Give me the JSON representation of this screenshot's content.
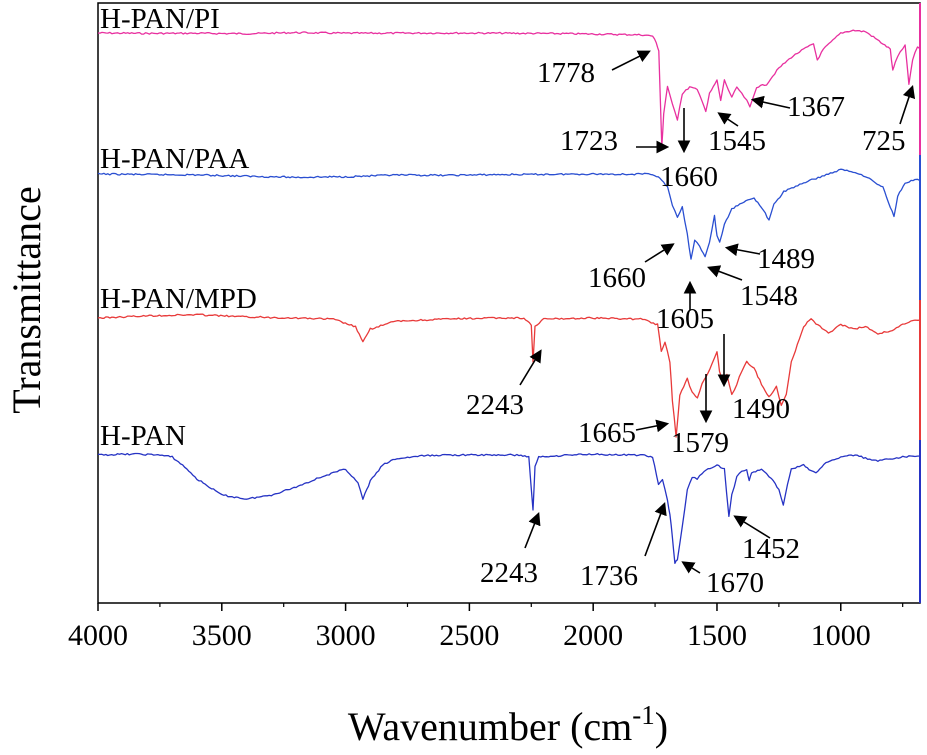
{
  "chart_data": {
    "type": "line",
    "title": "",
    "xlabel": "Wavenumber (cm",
    "xlabel_sup": "-1",
    "xlabel_close": ")",
    "ylabel": "Transmittance",
    "xlim": [
      4000,
      680
    ],
    "x_reversed": true,
    "y_ticks_shown": false,
    "grid": false,
    "x_ticks": [
      "4000",
      "3500",
      "3000",
      "2500",
      "2000",
      "1500",
      "1000"
    ],
    "x_tick_values": [
      4000,
      3500,
      3000,
      2500,
      2000,
      1500,
      1000
    ],
    "series": [
      {
        "name": "H-PAN/PI",
        "color": "#e8309f",
        "baseline_text": "",
        "points": [
          [
            4000,
            0
          ],
          [
            3800,
            0.3
          ],
          [
            3600,
            0.2
          ],
          [
            3400,
            0.5
          ],
          [
            3200,
            -0.3
          ],
          [
            3000,
            0.2
          ],
          [
            2800,
            0.1
          ],
          [
            2600,
            0
          ],
          [
            2400,
            0.1
          ],
          [
            2250,
            0.3
          ],
          [
            2100,
            0.5
          ],
          [
            1950,
            0.9
          ],
          [
            1800,
            1.4
          ],
          [
            1760,
            2.2
          ],
          [
            1745,
            7.5
          ],
          [
            1735,
            13
          ],
          [
            1723,
            84
          ],
          [
            1715,
            60
          ],
          [
            1700,
            40
          ],
          [
            1680,
            52
          ],
          [
            1660,
            64
          ],
          [
            1640,
            45
          ],
          [
            1610,
            40
          ],
          [
            1580,
            42
          ],
          [
            1560,
            50
          ],
          [
            1545,
            58
          ],
          [
            1530,
            45
          ],
          [
            1500,
            35
          ],
          [
            1485,
            50
          ],
          [
            1470,
            35
          ],
          [
            1440,
            48
          ],
          [
            1420,
            40
          ],
          [
            1400,
            45
          ],
          [
            1380,
            50
          ],
          [
            1367,
            55
          ],
          [
            1340,
            40
          ],
          [
            1300,
            38
          ],
          [
            1250,
            26
          ],
          [
            1200,
            18
          ],
          [
            1150,
            12
          ],
          [
            1110,
            8
          ],
          [
            1095,
            20
          ],
          [
            1070,
            12
          ],
          [
            1000,
            0
          ],
          [
            950,
            -2
          ],
          [
            900,
            -1
          ],
          [
            860,
            4
          ],
          [
            830,
            8
          ],
          [
            800,
            12
          ],
          [
            790,
            28
          ],
          [
            780,
            22
          ],
          [
            760,
            14
          ],
          [
            740,
            9
          ],
          [
            725,
            38
          ],
          [
            710,
            20
          ],
          [
            690,
            10
          ],
          [
            680,
            12
          ]
        ]
      },
      {
        "name": "H-PAN/PAA",
        "color": "#2a4fd1",
        "points": [
          [
            4000,
            0
          ],
          [
            3800,
            0.5
          ],
          [
            3600,
            0.8
          ],
          [
            3400,
            2
          ],
          [
            3200,
            3
          ],
          [
            3000,
            2.5
          ],
          [
            2800,
            1
          ],
          [
            2600,
            1.2
          ],
          [
            2400,
            0.6
          ],
          [
            2200,
            0.3
          ],
          [
            2000,
            0
          ],
          [
            1850,
            0.2
          ],
          [
            1760,
            0
          ],
          [
            1730,
            4
          ],
          [
            1700,
            12
          ],
          [
            1680,
            28
          ],
          [
            1660,
            40
          ],
          [
            1640,
            30
          ],
          [
            1620,
            55
          ],
          [
            1605,
            78
          ],
          [
            1590,
            60
          ],
          [
            1570,
            66
          ],
          [
            1548,
            75
          ],
          [
            1530,
            62
          ],
          [
            1510,
            38
          ],
          [
            1500,
            56
          ],
          [
            1489,
            62
          ],
          [
            1470,
            46
          ],
          [
            1440,
            32
          ],
          [
            1400,
            26
          ],
          [
            1350,
            22
          ],
          [
            1320,
            30
          ],
          [
            1290,
            42
          ],
          [
            1270,
            28
          ],
          [
            1230,
            16
          ],
          [
            1150,
            8
          ],
          [
            1100,
            4
          ],
          [
            1050,
            0
          ],
          [
            1000,
            -4
          ],
          [
            950,
            -2
          ],
          [
            900,
            2
          ],
          [
            860,
            8
          ],
          [
            830,
            12
          ],
          [
            800,
            30
          ],
          [
            785,
            38
          ],
          [
            770,
            20
          ],
          [
            740,
            8
          ],
          [
            700,
            5
          ],
          [
            680,
            6
          ]
        ]
      },
      {
        "name": "H-PAN/MPD",
        "color": "#e83a3a",
        "points": [
          [
            4000,
            0
          ],
          [
            3800,
            -2
          ],
          [
            3600,
            -3
          ],
          [
            3400,
            -1
          ],
          [
            3200,
            0
          ],
          [
            3050,
            1
          ],
          [
            2960,
            8
          ],
          [
            2930,
            22
          ],
          [
            2900,
            10
          ],
          [
            2800,
            3
          ],
          [
            2600,
            1
          ],
          [
            2400,
            0
          ],
          [
            2280,
            0
          ],
          [
            2250,
            6
          ],
          [
            2243,
            40
          ],
          [
            2235,
            8
          ],
          [
            2200,
            1
          ],
          [
            2000,
            0
          ],
          [
            1800,
            1
          ],
          [
            1740,
            6
          ],
          [
            1725,
            30
          ],
          [
            1710,
            22
          ],
          [
            1690,
            40
          ],
          [
            1680,
            75
          ],
          [
            1665,
            108
          ],
          [
            1650,
            70
          ],
          [
            1620,
            55
          ],
          [
            1600,
            68
          ],
          [
            1579,
            72
          ],
          [
            1560,
            60
          ],
          [
            1520,
            42
          ],
          [
            1500,
            30
          ],
          [
            1490,
            48
          ],
          [
            1475,
            58
          ],
          [
            1460,
            52
          ],
          [
            1440,
            70
          ],
          [
            1420,
            60
          ],
          [
            1400,
            48
          ],
          [
            1380,
            40
          ],
          [
            1350,
            46
          ],
          [
            1320,
            60
          ],
          [
            1290,
            72
          ],
          [
            1260,
            62
          ],
          [
            1240,
            80
          ],
          [
            1220,
            70
          ],
          [
            1200,
            40
          ],
          [
            1150,
            8
          ],
          [
            1120,
            0
          ],
          [
            1100,
            5
          ],
          [
            1050,
            14
          ],
          [
            1000,
            6
          ],
          [
            950,
            10
          ],
          [
            900,
            8
          ],
          [
            850,
            14
          ],
          [
            800,
            12
          ],
          [
            750,
            6
          ],
          [
            700,
            2
          ],
          [
            680,
            2
          ]
        ]
      },
      {
        "name": "H-PAN",
        "color": "#2633c4",
        "points": [
          [
            4000,
            0
          ],
          [
            3850,
            -1
          ],
          [
            3750,
            0
          ],
          [
            3700,
            2
          ],
          [
            3650,
            12
          ],
          [
            3600,
            24
          ],
          [
            3500,
            40
          ],
          [
            3400,
            44
          ],
          [
            3300,
            40
          ],
          [
            3200,
            32
          ],
          [
            3100,
            22
          ],
          [
            3000,
            14
          ],
          [
            2950,
            28
          ],
          [
            2930,
            44
          ],
          [
            2900,
            26
          ],
          [
            2850,
            10
          ],
          [
            2800,
            4
          ],
          [
            2700,
            1
          ],
          [
            2600,
            0
          ],
          [
            2500,
            0
          ],
          [
            2400,
            0
          ],
          [
            2300,
            0
          ],
          [
            2260,
            2
          ],
          [
            2243,
            55
          ],
          [
            2235,
            12
          ],
          [
            2220,
            2
          ],
          [
            2100,
            0
          ],
          [
            2000,
            -1
          ],
          [
            1900,
            0
          ],
          [
            1800,
            0
          ],
          [
            1760,
            2
          ],
          [
            1736,
            30
          ],
          [
            1720,
            25
          ],
          [
            1700,
            45
          ],
          [
            1690,
            60
          ],
          [
            1680,
            82
          ],
          [
            1670,
            108
          ],
          [
            1660,
            104
          ],
          [
            1640,
            72
          ],
          [
            1620,
            35
          ],
          [
            1600,
            22
          ],
          [
            1580,
            24
          ],
          [
            1560,
            18
          ],
          [
            1520,
            12
          ],
          [
            1500,
            10
          ],
          [
            1470,
            14
          ],
          [
            1452,
            62
          ],
          [
            1440,
            40
          ],
          [
            1420,
            22
          ],
          [
            1400,
            16
          ],
          [
            1380,
            14
          ],
          [
            1370,
            26
          ],
          [
            1360,
            18
          ],
          [
            1320,
            14
          ],
          [
            1300,
            18
          ],
          [
            1280,
            24
          ],
          [
            1250,
            34
          ],
          [
            1232,
            50
          ],
          [
            1215,
            30
          ],
          [
            1200,
            14
          ],
          [
            1150,
            10
          ],
          [
            1120,
            16
          ],
          [
            1100,
            18
          ],
          [
            1060,
            8
          ],
          [
            1000,
            2
          ],
          [
            950,
            0
          ],
          [
            900,
            3
          ],
          [
            850,
            6
          ],
          [
            800,
            4
          ],
          [
            750,
            2
          ],
          [
            700,
            1
          ],
          [
            680,
            1
          ]
        ]
      }
    ],
    "annotations": [
      {
        "text": "1778",
        "series": "H-PAN/PI"
      },
      {
        "text": "1723",
        "series": "H-PAN/PI"
      },
      {
        "text": "1660",
        "series": "H-PAN/PI"
      },
      {
        "text": "1545",
        "series": "H-PAN/PI"
      },
      {
        "text": "1367",
        "series": "H-PAN/PI"
      },
      {
        "text": "725",
        "series": "H-PAN/PI"
      },
      {
        "text": "1660",
        "series": "H-PAN/PAA"
      },
      {
        "text": "1605",
        "series": "H-PAN/PAA"
      },
      {
        "text": "1548",
        "series": "H-PAN/PAA"
      },
      {
        "text": "1489",
        "series": "H-PAN/PAA"
      },
      {
        "text": "2243",
        "series": "H-PAN/MPD"
      },
      {
        "text": "1665",
        "series": "H-PAN/MPD"
      },
      {
        "text": "1579",
        "series": "H-PAN/MPD"
      },
      {
        "text": "1490",
        "series": "H-PAN/MPD"
      },
      {
        "text": "2243",
        "series": "H-PAN"
      },
      {
        "text": "1736",
        "series": "H-PAN"
      },
      {
        "text": "1670",
        "series": "H-PAN"
      },
      {
        "text": "1452",
        "series": "H-PAN"
      }
    ]
  }
}
